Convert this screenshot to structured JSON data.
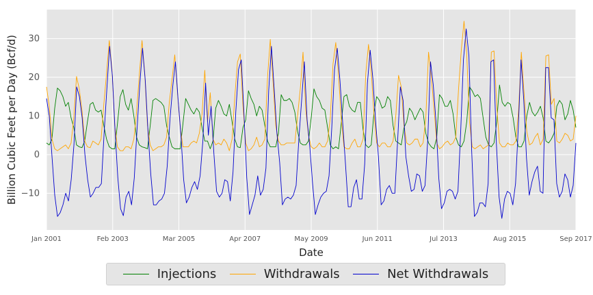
{
  "chart_data": {
    "type": "line",
    "title": "",
    "xlabel": "Date",
    "ylabel": "Billion Cubic Feet per Day (Bcf/d)",
    "x_start": "2001-01",
    "x_end": "2017-09",
    "x_ticks": [
      "Jan 2001",
      "Feb 2003",
      "Mar 2005",
      "Apr 2007",
      "May 2009",
      "Jun 2011",
      "Jul 2013",
      "Aug 2015",
      "Sep 2017"
    ],
    "ylim": [
      -19.5,
      37.5
    ],
    "y_ticks": [
      -10,
      0,
      10,
      20,
      30
    ],
    "grid": true,
    "legend_position": "bottom-center",
    "series": [
      {
        "name": "Injections",
        "color": "#008000",
        "values": [
          3.0,
          2.5,
          4.0,
          12.0,
          17.2,
          16.5,
          15.0,
          12.5,
          13.5,
          9.5,
          7.0,
          2.5,
          2.0,
          1.8,
          3.5,
          8.5,
          13.0,
          13.5,
          11.5,
          11.0,
          11.5,
          7.5,
          4.0,
          2.0,
          1.5,
          1.5,
          8.0,
          15.0,
          16.8,
          13.0,
          11.5,
          14.5,
          10.0,
          4.5,
          2.5,
          2.0,
          1.8,
          1.5,
          7.5,
          14.0,
          14.5,
          14.0,
          13.5,
          12.5,
          7.5,
          4.5,
          2.0,
          1.5,
          1.5,
          1.5,
          8.0,
          14.5,
          13.0,
          11.5,
          10.5,
          12.0,
          11.0,
          7.0,
          3.5,
          3.5,
          1.5,
          3.5,
          12.0,
          14.0,
          12.5,
          10.5,
          10.0,
          13.0,
          8.5,
          4.0,
          2.0,
          1.8,
          7.0,
          9.0,
          16.5,
          14.5,
          13.0,
          10.0,
          12.5,
          11.5,
          7.5,
          3.5,
          2.0,
          2.0,
          2.0,
          5.5,
          15.5,
          14.0,
          14.0,
          14.5,
          13.5,
          11.0,
          6.0,
          3.0,
          2.5,
          2.5,
          3.5,
          9.5,
          17.0,
          15.0,
          14.0,
          12.0,
          11.5,
          7.0,
          2.5,
          1.5,
          2.0,
          1.5,
          8.0,
          15.0,
          15.5,
          12.5,
          11.5,
          11.0,
          13.5,
          13.5,
          6.5,
          2.5,
          1.8,
          2.5,
          11.0,
          15.0,
          14.0,
          12.0,
          12.5,
          15.0,
          14.0,
          7.5,
          3.5,
          3.0,
          2.5,
          7.0,
          8.5,
          12.0,
          11.0,
          9.0,
          10.5,
          12.0,
          11.0,
          5.5,
          3.0,
          2.0,
          1.5,
          4.5,
          15.5,
          14.5,
          12.5,
          12.5,
          14.0,
          10.5,
          4.5,
          2.5,
          2.0,
          3.5,
          8.5,
          17.5,
          16.5,
          15.0,
          15.5,
          14.5,
          9.5,
          4.5,
          2.5,
          2.0,
          3.0,
          8.5,
          18.0,
          13.5,
          12.5,
          13.5,
          13.0,
          9.5,
          4.5,
          2.0,
          2.0,
          3.5,
          10.0,
          13.5,
          11.0,
          10.0,
          11.0,
          12.5,
          9.5,
          3.5,
          3.0,
          4.0,
          5.5,
          12.5,
          14.0,
          13.0,
          9.0,
          10.5,
          14.0,
          11.5,
          7.0
        ]
      },
      {
        "name": "Withdrawals",
        "color": "#ffa500",
        "values": [
          17.5,
          12.5,
          4.0,
          1.5,
          1.0,
          1.5,
          2.0,
          2.5,
          1.5,
          3.0,
          9.5,
          20.2,
          17.0,
          11.5,
          3.5,
          2.0,
          1.8,
          3.5,
          3.0,
          2.5,
          4.0,
          13.0,
          21.0,
          29.5,
          22.0,
          7.5,
          2.0,
          1.0,
          1.0,
          2.0,
          2.0,
          1.5,
          4.0,
          11.0,
          20.5,
          29.5,
          21.0,
          7.5,
          2.5,
          1.0,
          1.5,
          2.0,
          2.0,
          2.5,
          4.5,
          13.5,
          19.5,
          25.8,
          16.0,
          7.0,
          2.0,
          2.0,
          2.0,
          3.0,
          3.5,
          3.0,
          5.5,
          10.5,
          21.8,
          8.5,
          16.0,
          4.0,
          2.5,
          3.0,
          2.5,
          4.0,
          3.0,
          1.0,
          4.0,
          15.0,
          24.0,
          26.0,
          12.5,
          3.0,
          1.0,
          1.5,
          2.5,
          4.5,
          2.0,
          2.5,
          4.0,
          20.0,
          29.8,
          19.0,
          7.5,
          3.5,
          2.5,
          2.5,
          3.0,
          3.0,
          3.0,
          3.0,
          10.0,
          17.0,
          26.5,
          11.5,
          5.0,
          2.0,
          1.5,
          2.0,
          3.0,
          2.0,
          2.0,
          3.5,
          9.5,
          23.5,
          29.0,
          20.5,
          9.5,
          2.0,
          1.5,
          1.5,
          3.0,
          4.0,
          2.0,
          2.0,
          4.0,
          21.0,
          28.5,
          21.5,
          10.5,
          3.0,
          2.0,
          3.0,
          3.0,
          2.0,
          2.0,
          3.5,
          10.0,
          20.5,
          17.5,
          7.5,
          3.0,
          2.5,
          3.0,
          4.0,
          4.0,
          2.0,
          3.0,
          9.5,
          26.5,
          20.0,
          12.0,
          3.0,
          1.5,
          2.0,
          3.0,
          3.5,
          2.5,
          3.0,
          4.5,
          17.0,
          27.0,
          34.5,
          26.0,
          8.5,
          2.0,
          1.5,
          2.0,
          2.5,
          1.5,
          2.0,
          2.5,
          26.5,
          26.8,
          12.5,
          3.0,
          2.0,
          2.0,
          3.0,
          2.5,
          2.5,
          3.5,
          11.5,
          26.5,
          16.0,
          6.0,
          2.5,
          3.0,
          4.5,
          5.5,
          2.5,
          4.0,
          25.5,
          25.8,
          13.0,
          14.5,
          3.5,
          3.0,
          4.0,
          5.5,
          5.0,
          3.5,
          4.0,
          10.0
        ]
      },
      {
        "name": "Net Withdrawals",
        "color": "#0000cd",
        "values": [
          14.5,
          10.0,
          -0.5,
          -10.5,
          -16.0,
          -15.0,
          -13.0,
          -10.0,
          -12.0,
          -6.5,
          2.5,
          17.5,
          15.0,
          9.5,
          0.0,
          -6.5,
          -11.0,
          -10.0,
          -8.5,
          -8.5,
          -7.5,
          5.5,
          17.0,
          28.0,
          20.5,
          6.0,
          -6.0,
          -14.0,
          -15.8,
          -11.0,
          -9.5,
          -13.0,
          -6.0,
          6.5,
          18.0,
          27.5,
          19.2,
          6.0,
          -5.0,
          -13.0,
          -13.0,
          -12.0,
          -11.5,
          -10.0,
          -3.0,
          9.0,
          17.5,
          24.0,
          14.0,
          5.0,
          -6.5,
          -12.5,
          -11.0,
          -8.5,
          -7.0,
          -9.0,
          -5.5,
          3.5,
          18.5,
          5.0,
          12.5,
          0.5,
          -9.5,
          -11.0,
          -10.0,
          -6.5,
          -7.0,
          -12.0,
          -4.5,
          11.0,
          22.0,
          24.5,
          10.5,
          -6.0,
          -15.5,
          -13.0,
          -10.5,
          -5.5,
          -10.5,
          -9.0,
          -3.5,
          16.5,
          28.0,
          17.0,
          5.5,
          -2.0,
          -13.0,
          -11.5,
          -11.0,
          -11.5,
          -10.5,
          -8.0,
          4.0,
          14.0,
          24.0,
          9.0,
          2.0,
          -7.5,
          -15.5,
          -13.0,
          -11.0,
          -10.0,
          -9.5,
          -5.5,
          7.0,
          22.0,
          27.5,
          19.0,
          8.0,
          -2.5,
          -13.5,
          -13.5,
          -8.5,
          -6.5,
          -11.5,
          -11.5,
          -2.5,
          18.5,
          27.0,
          19.5,
          8.5,
          -0.5,
          -13.0,
          -12.0,
          -9.0,
          -8.0,
          -10.0,
          -10.0,
          3.5,
          17.5,
          14.0,
          -0.5,
          -5.5,
          -9.5,
          -9.0,
          -5.0,
          -5.5,
          -9.5,
          -8.0,
          4.0,
          24.0,
          18.0,
          8.5,
          -6.0,
          -14.0,
          -12.5,
          -9.5,
          -9.0,
          -9.5,
          -11.5,
          -9.5,
          6.0,
          24.5,
          32.5,
          25.5,
          1.0,
          -16.0,
          -15.0,
          -12.5,
          -12.5,
          -13.5,
          -7.5,
          24.0,
          24.5,
          3.0,
          -11.0,
          -16.5,
          -11.5,
          -9.5,
          -10.0,
          -13.0,
          -7.5,
          7.0,
          24.5,
          14.0,
          -1.0,
          -10.5,
          -7.0,
          -4.5,
          -3.0,
          -9.5,
          -10.0,
          22.5,
          22.5,
          9.5,
          9.0,
          -7.5,
          -11.0,
          -9.5,
          -5.0,
          -6.5,
          -11.0,
          -8.0,
          3.0
        ]
      }
    ]
  }
}
